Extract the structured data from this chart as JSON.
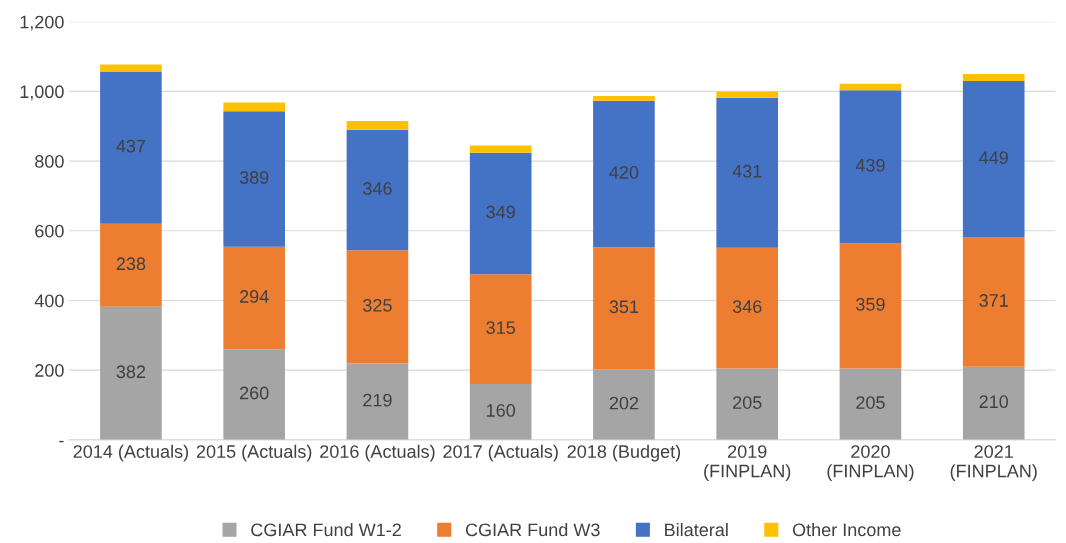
{
  "chart_data": {
    "type": "bar",
    "stacked": true,
    "categories": [
      "2014 (Actuals)",
      "2015 (Actuals)",
      "2016 (Actuals)",
      "2017 (Actuals)",
      "2018 (Budget)",
      "2019\n(FINPLAN)",
      "2020\n(FINPLAN)",
      "2021\n(FINPLAN)"
    ],
    "series": [
      {
        "name": "CGIAR Fund W1-2",
        "color": "#a5a5a5",
        "values": [
          382,
          260,
          219,
          160,
          202,
          205,
          205,
          210
        ],
        "value_labels": [
          "382",
          "260",
          "219",
          "160",
          "202",
          "205",
          "205",
          "210"
        ]
      },
      {
        "name": "CGIAR Fund W3",
        "color": "#ed7d31",
        "values": [
          238,
          294,
          325,
          315,
          351,
          346,
          359,
          371
        ],
        "value_labels": [
          "238",
          "294",
          "325",
          "315",
          "351",
          "346",
          "359",
          "371"
        ]
      },
      {
        "name": "Bilateral",
        "color": "#4472c4",
        "values": [
          437,
          389,
          346,
          349,
          420,
          431,
          439,
          449
        ],
        "value_labels": [
          "437",
          "389",
          "346",
          "349",
          "420",
          "431",
          "439",
          "449"
        ]
      },
      {
        "name": "Other Income",
        "color": "#ffc000",
        "values": [
          20,
          25,
          25,
          21,
          14,
          18,
          19,
          20
        ]
      }
    ],
    "ylim": [
      0,
      1200
    ],
    "yticks": [
      {
        "value": 0,
        "label": "-"
      },
      {
        "value": 200,
        "label": "200"
      },
      {
        "value": 400,
        "label": "400"
      },
      {
        "value": 600,
        "label": "600"
      },
      {
        "value": 800,
        "label": "800"
      },
      {
        "value": 1000,
        "label": "1,000"
      },
      {
        "value": 1200,
        "label": "1,200"
      }
    ],
    "grid": "y",
    "legend": "bottom"
  }
}
